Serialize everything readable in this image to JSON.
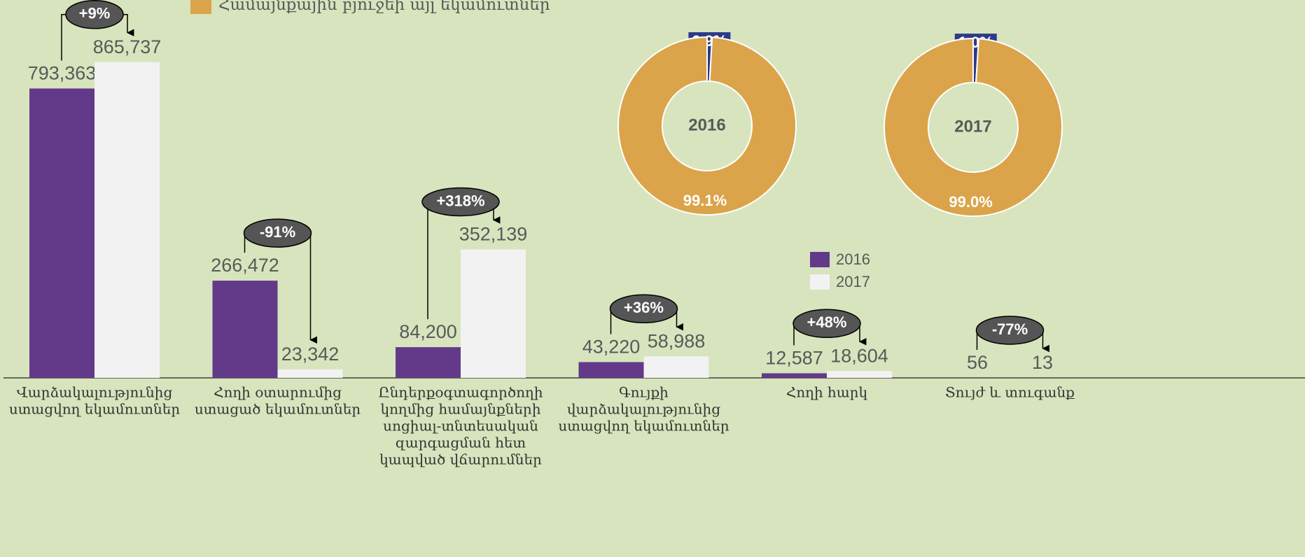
{
  "chart_data": [
    {
      "type": "bar",
      "categories": [
        [
          "Վարձակալությունից",
          "ստացվող եկամուտներ"
        ],
        [
          "Հողի օտարումից",
          "ստացած եկամուտներ"
        ],
        [
          "Ընդերքօգտագործողի",
          "կողմից համայնքների",
          "սոցիալ-տնտեսական",
          "զարգացման հետ",
          "կապված վճարումներ"
        ],
        [
          "Գույքի",
          "վարձակալությունից",
          "ստացվող եկամուտներ"
        ],
        [
          "Հողի հարկ"
        ],
        [
          "Տույժ և տուգանք"
        ]
      ],
      "series": [
        {
          "name": "2016",
          "color": "#633a8a",
          "values": [
            793363,
            266472,
            84200,
            43220,
            12587,
            56
          ],
          "value_labels": [
            "793,363",
            "266,472",
            "84,200",
            "43,220",
            "12,587",
            "56"
          ]
        },
        {
          "name": "2017",
          "color": "#f2f2f2",
          "values": [
            865737,
            23342,
            352139,
            58988,
            18604,
            13
          ],
          "value_labels": [
            "865,737",
            "23,342",
            "352,139",
            "58,988",
            "18,604",
            "13"
          ]
        }
      ],
      "changes": [
        "+9%",
        "-91%",
        "+318%",
        "+36%",
        "+48%",
        "-77%"
      ],
      "ylim": [
        0,
        1036000
      ]
    },
    {
      "type": "pie",
      "title": "2016",
      "values": [
        0.9,
        99.1
      ],
      "value_labels": [
        "0.9%",
        "99.1%"
      ],
      "colors": [
        "#2e3a87",
        "#dba44a"
      ]
    },
    {
      "type": "pie",
      "title": "2017",
      "values": [
        1.0,
        99.0
      ],
      "value_labels": [
        "1.0%",
        "99.0%"
      ],
      "colors": [
        "#2e3a87",
        "#dba44a"
      ]
    }
  ],
  "donut_legend": {
    "label": "Համայնքային բյուջեի այլ եկամուտներ",
    "color": "#dba44a"
  }
}
